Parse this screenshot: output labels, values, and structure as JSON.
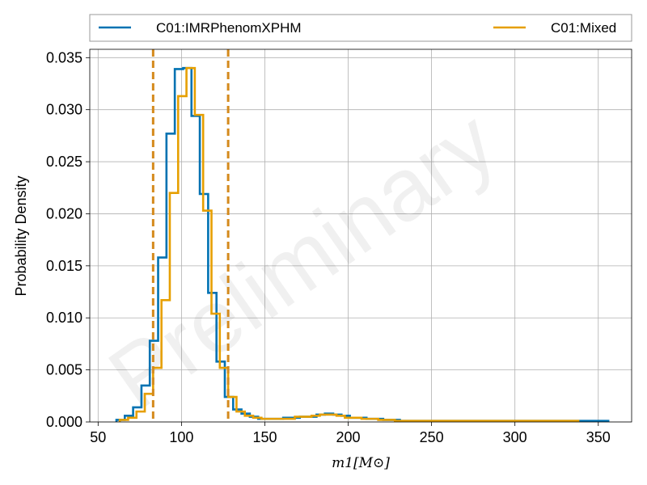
{
  "chart_data": {
    "type": "histogram",
    "xlabel": "m1[M⊙]",
    "ylabel": "Probability Density",
    "xlim": [
      45,
      370
    ],
    "ylim": [
      0,
      0.0358
    ],
    "xticks": [
      "50",
      "100",
      "150",
      "200",
      "250",
      "300",
      "350"
    ],
    "yticks": [
      "0.000",
      "0.005",
      "0.010",
      "0.015",
      "0.020",
      "0.025",
      "0.030",
      "0.035"
    ],
    "grid": true,
    "legend_position": "top, above plot",
    "watermark": "Preliminary",
    "vlines": [
      {
        "x": 83,
        "style": "dashed",
        "color": "#d48a1c"
      },
      {
        "x": 128,
        "style": "dashed",
        "color": "#d48a1c"
      }
    ],
    "series": [
      {
        "name": "C01:IMRPhenomXPHM",
        "color": "#0072b2",
        "edges": [
          61,
          66,
          71,
          76,
          81,
          86,
          91,
          96,
          101,
          106,
          111,
          116,
          121,
          126,
          131,
          136,
          141,
          146,
          151,
          161,
          171,
          181,
          186,
          191,
          196,
          201,
          211,
          221,
          231,
          241,
          251,
          281,
          311,
          341,
          356
        ],
        "values": [
          0.0002,
          0.0006,
          0.0014,
          0.0035,
          0.0078,
          0.0158,
          0.0277,
          0.0339,
          0.034,
          0.0294,
          0.0219,
          0.0124,
          0.0058,
          0.0024,
          0.0012,
          0.0008,
          0.0005,
          0.0003,
          0.0003,
          0.0004,
          0.0005,
          0.0007,
          0.0008,
          0.0007,
          0.0006,
          0.0004,
          0.0003,
          0.0002,
          0.0001,
          0.0001,
          0.0001,
          0.0001,
          0.0001,
          0.0001
        ]
      },
      {
        "name": "C01:Mixed",
        "color": "#e69f00",
        "edges": [
          63,
          68,
          73,
          78,
          83,
          88,
          93,
          98,
          103,
          108,
          113,
          118,
          123,
          128,
          133,
          138,
          143,
          148,
          158,
          168,
          178,
          183,
          188,
          193,
          198,
          208,
          218,
          228,
          238,
          248,
          278,
          308,
          338
        ],
        "values": [
          0.0002,
          0.0004,
          0.001,
          0.0027,
          0.0052,
          0.0117,
          0.022,
          0.0313,
          0.034,
          0.0295,
          0.0203,
          0.0104,
          0.0052,
          0.0024,
          0.001,
          0.0006,
          0.0004,
          0.0003,
          0.0003,
          0.0005,
          0.0006,
          0.0007,
          0.0007,
          0.0006,
          0.0004,
          0.0003,
          0.0002,
          0.0001,
          0.0001,
          0.0001,
          0.0001,
          0.0001
        ]
      }
    ]
  }
}
